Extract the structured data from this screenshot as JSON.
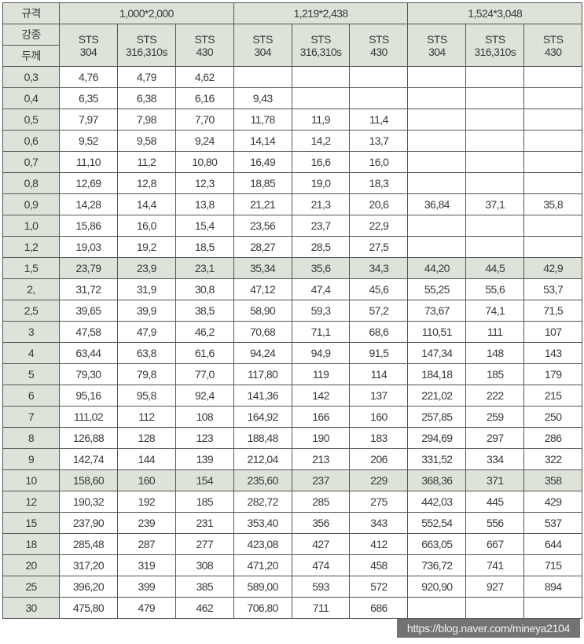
{
  "header": {
    "spec_label": "규격",
    "grade_label": "강종",
    "thickness_label": "두께",
    "groups": [
      "1,000*2,000",
      "1,219*2,438",
      "1,524*3,048"
    ],
    "grades": [
      [
        "STS",
        "304"
      ],
      [
        "STS",
        "316,310s"
      ],
      [
        "STS",
        "430"
      ]
    ]
  },
  "rows": [
    {
      "t": "0,3",
      "v": [
        "4,76",
        "4,79",
        "4,62",
        "",
        "",
        "",
        "",
        "",
        ""
      ]
    },
    {
      "t": "0,4",
      "v": [
        "6,35",
        "6,38",
        "6,16",
        "9,43",
        "",
        "",
        "",
        "",
        ""
      ]
    },
    {
      "t": "0,5",
      "v": [
        "7,97",
        "7,98",
        "7,70",
        "11,78",
        "11,9",
        "11,4",
        "",
        "",
        ""
      ]
    },
    {
      "t": "0,6",
      "v": [
        "9,52",
        "9,58",
        "9,24",
        "14,14",
        "14,2",
        "13,7",
        "",
        "",
        ""
      ]
    },
    {
      "t": "0,7",
      "v": [
        "11,10",
        "11,2",
        "10,80",
        "16,49",
        "16,6",
        "16,0",
        "",
        "",
        ""
      ]
    },
    {
      "t": "0,8",
      "v": [
        "12,69",
        "12,8",
        "12,3",
        "18,85",
        "19,0",
        "18,3",
        "",
        "",
        ""
      ]
    },
    {
      "t": "0,9",
      "v": [
        "14,28",
        "14,4",
        "13,8",
        "21,21",
        "21,3",
        "20,6",
        "36,84",
        "37,1",
        "35,8"
      ]
    },
    {
      "t": "1,0",
      "v": [
        "15,86",
        "16,0",
        "15,4",
        "23,56",
        "23,7",
        "22,9",
        "",
        "",
        ""
      ]
    },
    {
      "t": "1,2",
      "v": [
        "19,03",
        "19,2",
        "18,5",
        "28,27",
        "28,5",
        "27,5",
        "",
        "",
        ""
      ]
    },
    {
      "t": "1,5",
      "v": [
        "23,79",
        "23,9",
        "23,1",
        "35,34",
        "35,6",
        "34,3",
        "44,20",
        "44,5",
        "42,9"
      ],
      "shaded": true
    },
    {
      "t": "2,",
      "v": [
        "31,72",
        "31,9",
        "30,8",
        "47,12",
        "47,4",
        "45,6",
        "55,25",
        "55,6",
        "53,7"
      ]
    },
    {
      "t": "2,5",
      "v": [
        "39,65",
        "39,9",
        "38,5",
        "58,90",
        "59,3",
        "57,2",
        "73,67",
        "74,1",
        "71,5"
      ]
    },
    {
      "t": "3",
      "v": [
        "47,58",
        "47,9",
        "46,2",
        "70,68",
        "71,1",
        "68,6",
        "110,51",
        "111",
        "107"
      ]
    },
    {
      "t": "4",
      "v": [
        "63,44",
        "63,8",
        "61,6",
        "94,24",
        "94,9",
        "91,5",
        "147,34",
        "148",
        "143"
      ]
    },
    {
      "t": "5",
      "v": [
        "79,30",
        "79,8",
        "77,0",
        "117,80",
        "119",
        "114",
        "184,18",
        "185",
        "179"
      ]
    },
    {
      "t": "6",
      "v": [
        "95,16",
        "95,8",
        "92,4",
        "141,36",
        "142",
        "137",
        "221,02",
        "222",
        "215"
      ]
    },
    {
      "t": "7",
      "v": [
        "111,02",
        "112",
        "108",
        "164,92",
        "166",
        "160",
        "257,85",
        "259",
        "250"
      ]
    },
    {
      "t": "8",
      "v": [
        "126,88",
        "128",
        "123",
        "188,48",
        "190",
        "183",
        "294,69",
        "297",
        "286"
      ]
    },
    {
      "t": "9",
      "v": [
        "142,74",
        "144",
        "139",
        "212,04",
        "213",
        "206",
        "331,52",
        "334",
        "322"
      ]
    },
    {
      "t": "10",
      "v": [
        "158,60",
        "160",
        "154",
        "235,60",
        "237",
        "229",
        "368,36",
        "371",
        "358"
      ],
      "shaded": true
    },
    {
      "t": "12",
      "v": [
        "190,32",
        "192",
        "185",
        "282,72",
        "285",
        "275",
        "442,03",
        "445",
        "429"
      ]
    },
    {
      "t": "15",
      "v": [
        "237,90",
        "239",
        "231",
        "353,40",
        "356",
        "343",
        "552,54",
        "556",
        "537"
      ]
    },
    {
      "t": "18",
      "v": [
        "285,48",
        "287",
        "277",
        "423,08",
        "427",
        "412",
        "663,05",
        "667",
        "644"
      ]
    },
    {
      "t": "20",
      "v": [
        "317,20",
        "319",
        "308",
        "471,20",
        "474",
        "458",
        "736,72",
        "741",
        "715"
      ]
    },
    {
      "t": "25",
      "v": [
        "396,20",
        "399",
        "385",
        "589,00",
        "593",
        "572",
        "920,90",
        "927",
        "894"
      ]
    },
    {
      "t": "30",
      "v": [
        "475,80",
        "479",
        "462",
        "706,80",
        "711",
        "686",
        "",
        "",
        ""
      ]
    }
  ],
  "watermark": "https://blog.naver.com/mineya2104"
}
